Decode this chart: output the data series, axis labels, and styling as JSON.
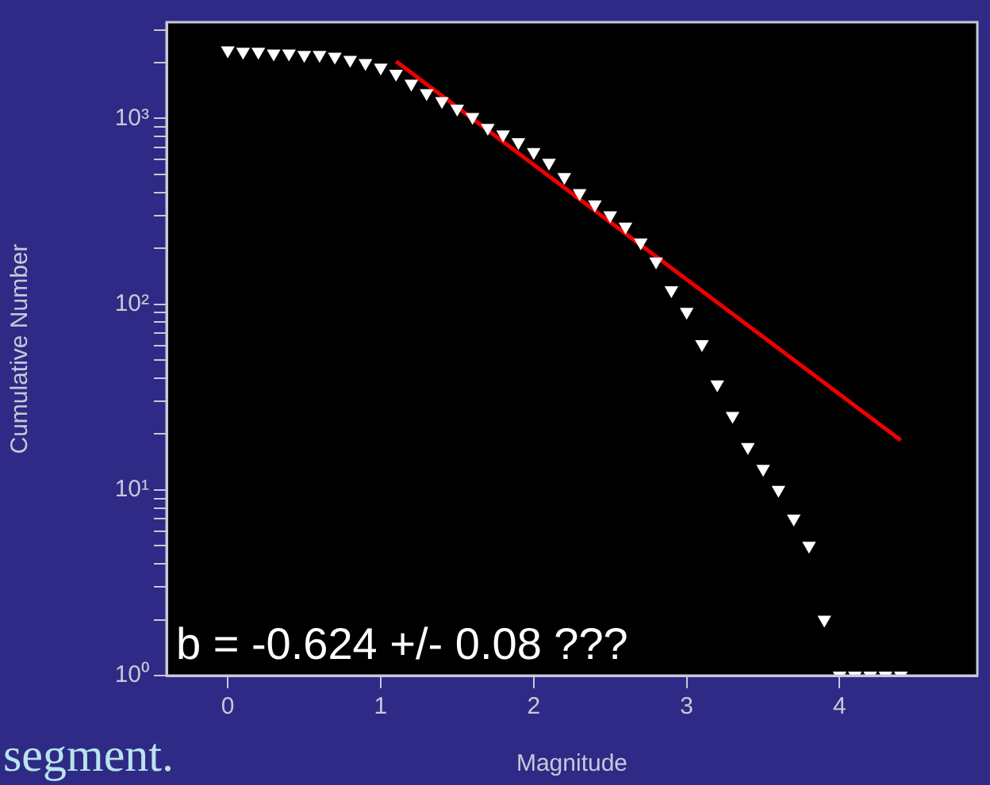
{
  "chart_data": {
    "type": "scatter",
    "xlabel": "Magnitude",
    "ylabel": "Cumulative Number",
    "xlim": [
      -0.4,
      4.9
    ],
    "xticks": [
      0,
      1,
      2,
      3,
      4
    ],
    "log": "y",
    "ylim": [
      1,
      3300
    ],
    "yticks": [
      {
        "value": 1,
        "label": "10⁰"
      },
      {
        "value": 2,
        "label": null
      },
      {
        "value": 3,
        "label": null
      },
      {
        "value": 4,
        "label": null
      },
      {
        "value": 5,
        "label": null
      },
      {
        "value": 6,
        "label": null
      },
      {
        "value": 7,
        "label": null
      },
      {
        "value": 8,
        "label": null
      },
      {
        "value": 9,
        "label": null
      },
      {
        "value": 10,
        "label": "10¹"
      },
      {
        "value": 20,
        "label": null
      },
      {
        "value": 30,
        "label": null
      },
      {
        "value": 40,
        "label": null
      },
      {
        "value": 50,
        "label": null
      },
      {
        "value": 60,
        "label": null
      },
      {
        "value": 70,
        "label": null
      },
      {
        "value": 80,
        "label": null
      },
      {
        "value": 90,
        "label": null
      },
      {
        "value": 100,
        "label": "10²"
      },
      {
        "value": 200,
        "label": null
      },
      {
        "value": 300,
        "label": null
      },
      {
        "value": 400,
        "label": null
      },
      {
        "value": 500,
        "label": null
      },
      {
        "value": 600,
        "label": null
      },
      {
        "value": 700,
        "label": null
      },
      {
        "value": 800,
        "label": null
      },
      {
        "value": 900,
        "label": null
      },
      {
        "value": 1000,
        "label": "10³"
      },
      {
        "value": 2000,
        "label": null
      },
      {
        "value": 3000,
        "label": null
      }
    ],
    "grid": false,
    "legend": false,
    "series": [
      {
        "color": "#ffffff",
        "marker": "triangle",
        "x": [
          0,
          0.1,
          0.2,
          0.3,
          0.4,
          0.5,
          0.6,
          0.7,
          0.8,
          0.9,
          1.0,
          1.1,
          1.2,
          1.3,
          1.4,
          1.5,
          1.6,
          1.7,
          1.8,
          1.9,
          2.0,
          2.1,
          2.2,
          2.3,
          2.4,
          2.5,
          2.6,
          2.7,
          2.8,
          2.9,
          3.0,
          3.1,
          3.2,
          3.3,
          3.4,
          3.5,
          3.6,
          3.7,
          3.8,
          3.9,
          4.0,
          4.1,
          4.2,
          4.3,
          4.4
        ],
        "values": [
          2330,
          2290,
          2290,
          2240,
          2240,
          2200,
          2200,
          2150,
          2070,
          1990,
          1880,
          1740,
          1540,
          1370,
          1240,
          1130,
          1020,
          890,
          820,
          745,
          660,
          577,
          484,
          397,
          345,
          301,
          262,
          215,
          170,
          119,
          91,
          61,
          37,
          25,
          17,
          13,
          10,
          7,
          5,
          2,
          1,
          1,
          1,
          1,
          1
        ]
      },
      {
        "type": "line",
        "color": "#ee0000",
        "marker": "none",
        "x": [
          1.1,
          4.4
        ],
        "values": [
          2030,
          18.5
        ]
      }
    ],
    "annotations": [
      "b = -0.624 +/- 0.08 ???",
      "segment."
    ]
  }
}
